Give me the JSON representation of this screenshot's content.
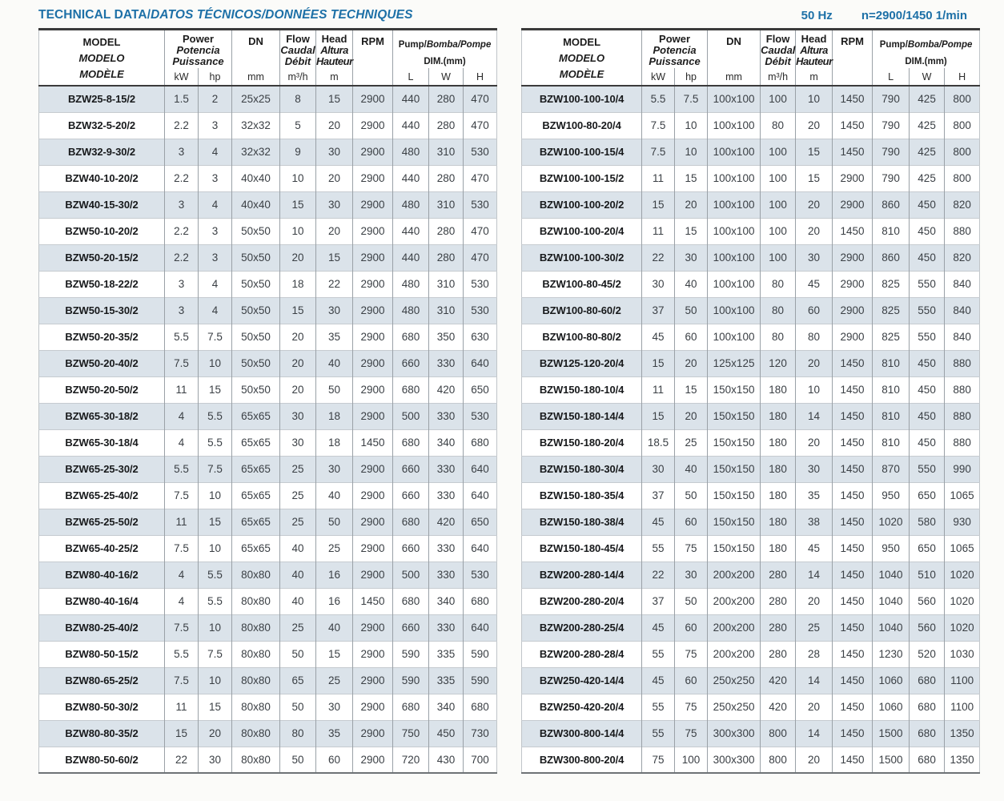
{
  "page": {
    "title_main": "TECHNICAL DATA/",
    "title_rest": "DATOS TÉCNICOS/DONNÉES TECHNIQUES",
    "frequency": "50 Hz",
    "speed": "n=2900/1450 1/min"
  },
  "header": {
    "model_lines": [
      "MODEL",
      "MODELO",
      "MODÈLE"
    ],
    "power_lines": [
      "Power",
      "Potencia",
      "Puissance"
    ],
    "dn": "DN",
    "flow_lines": [
      "Flow",
      "Caudal",
      "Débit"
    ],
    "head_lines": [
      "Head",
      "Altura",
      "Hauteur"
    ],
    "rpm": "RPM",
    "dim_pump": "Pump/",
    "dim_rest": "Bomba/Pompe",
    "dim_line2": "DIM.(mm)",
    "units": {
      "kw": "kW",
      "hp": "hp",
      "mm": "mm",
      "flow": "m³/h",
      "head": "m",
      "l": "L",
      "w": "W",
      "h": "H"
    }
  },
  "left_rows": [
    [
      "BZW25-8-15/2",
      "1.5",
      "2",
      "25x25",
      "8",
      "15",
      "2900",
      "440",
      "280",
      "470"
    ],
    [
      "BZW32-5-20/2",
      "2.2",
      "3",
      "32x32",
      "5",
      "20",
      "2900",
      "440",
      "280",
      "470"
    ],
    [
      "BZW32-9-30/2",
      "3",
      "4",
      "32x32",
      "9",
      "30",
      "2900",
      "480",
      "310",
      "530"
    ],
    [
      "BZW40-10-20/2",
      "2.2",
      "3",
      "40x40",
      "10",
      "20",
      "2900",
      "440",
      "280",
      "470"
    ],
    [
      "BZW40-15-30/2",
      "3",
      "4",
      "40x40",
      "15",
      "30",
      "2900",
      "480",
      "310",
      "530"
    ],
    [
      "BZW50-10-20/2",
      "2.2",
      "3",
      "50x50",
      "10",
      "20",
      "2900",
      "440",
      "280",
      "470"
    ],
    [
      "BZW50-20-15/2",
      "2.2",
      "3",
      "50x50",
      "20",
      "15",
      "2900",
      "440",
      "280",
      "470"
    ],
    [
      "BZW50-18-22/2",
      "3",
      "4",
      "50x50",
      "18",
      "22",
      "2900",
      "480",
      "310",
      "530"
    ],
    [
      "BZW50-15-30/2",
      "3",
      "4",
      "50x50",
      "15",
      "30",
      "2900",
      "480",
      "310",
      "530"
    ],
    [
      "BZW50-20-35/2",
      "5.5",
      "7.5",
      "50x50",
      "20",
      "35",
      "2900",
      "680",
      "350",
      "630"
    ],
    [
      "BZW50-20-40/2",
      "7.5",
      "10",
      "50x50",
      "20",
      "40",
      "2900",
      "660",
      "330",
      "640"
    ],
    [
      "BZW50-20-50/2",
      "11",
      "15",
      "50x50",
      "20",
      "50",
      "2900",
      "680",
      "420",
      "650"
    ],
    [
      "BZW65-30-18/2",
      "4",
      "5.5",
      "65x65",
      "30",
      "18",
      "2900",
      "500",
      "330",
      "530"
    ],
    [
      "BZW65-30-18/4",
      "4",
      "5.5",
      "65x65",
      "30",
      "18",
      "1450",
      "680",
      "340",
      "680"
    ],
    [
      "BZW65-25-30/2",
      "5.5",
      "7.5",
      "65x65",
      "25",
      "30",
      "2900",
      "660",
      "330",
      "640"
    ],
    [
      "BZW65-25-40/2",
      "7.5",
      "10",
      "65x65",
      "25",
      "40",
      "2900",
      "660",
      "330",
      "640"
    ],
    [
      "BZW65-25-50/2",
      "11",
      "15",
      "65x65",
      "25",
      "50",
      "2900",
      "680",
      "420",
      "650"
    ],
    [
      "BZW65-40-25/2",
      "7.5",
      "10",
      "65x65",
      "40",
      "25",
      "2900",
      "660",
      "330",
      "640"
    ],
    [
      "BZW80-40-16/2",
      "4",
      "5.5",
      "80x80",
      "40",
      "16",
      "2900",
      "500",
      "330",
      "530"
    ],
    [
      "BZW80-40-16/4",
      "4",
      "5.5",
      "80x80",
      "40",
      "16",
      "1450",
      "680",
      "340",
      "680"
    ],
    [
      "BZW80-25-40/2",
      "7.5",
      "10",
      "80x80",
      "25",
      "40",
      "2900",
      "660",
      "330",
      "640"
    ],
    [
      "BZW80-50-15/2",
      "5.5",
      "7.5",
      "80x80",
      "50",
      "15",
      "2900",
      "590",
      "335",
      "590"
    ],
    [
      "BZW80-65-25/2",
      "7.5",
      "10",
      "80x80",
      "65",
      "25",
      "2900",
      "590",
      "335",
      "590"
    ],
    [
      "BZW80-50-30/2",
      "11",
      "15",
      "80x80",
      "50",
      "30",
      "2900",
      "680",
      "340",
      "680"
    ],
    [
      "BZW80-80-35/2",
      "15",
      "20",
      "80x80",
      "80",
      "35",
      "2900",
      "750",
      "450",
      "730"
    ],
    [
      "BZW80-50-60/2",
      "22",
      "30",
      "80x80",
      "50",
      "60",
      "2900",
      "720",
      "430",
      "700"
    ]
  ],
  "right_rows": [
    [
      "BZW100-100-10/4",
      "5.5",
      "7.5",
      "100x100",
      "100",
      "10",
      "1450",
      "790",
      "425",
      "800"
    ],
    [
      "BZW100-80-20/4",
      "7.5",
      "10",
      "100x100",
      "80",
      "20",
      "1450",
      "790",
      "425",
      "800"
    ],
    [
      "BZW100-100-15/4",
      "7.5",
      "10",
      "100x100",
      "100",
      "15",
      "1450",
      "790",
      "425",
      "800"
    ],
    [
      "BZW100-100-15/2",
      "11",
      "15",
      "100x100",
      "100",
      "15",
      "2900",
      "790",
      "425",
      "800"
    ],
    [
      "BZW100-100-20/2",
      "15",
      "20",
      "100x100",
      "100",
      "20",
      "2900",
      "860",
      "450",
      "820"
    ],
    [
      "BZW100-100-20/4",
      "11",
      "15",
      "100x100",
      "100",
      "20",
      "1450",
      "810",
      "450",
      "880"
    ],
    [
      "BZW100-100-30/2",
      "22",
      "30",
      "100x100",
      "100",
      "30",
      "2900",
      "860",
      "450",
      "820"
    ],
    [
      "BZW100-80-45/2",
      "30",
      "40",
      "100x100",
      "80",
      "45",
      "2900",
      "825",
      "550",
      "840"
    ],
    [
      "BZW100-80-60/2",
      "37",
      "50",
      "100x100",
      "80",
      "60",
      "2900",
      "825",
      "550",
      "840"
    ],
    [
      "BZW100-80-80/2",
      "45",
      "60",
      "100x100",
      "80",
      "80",
      "2900",
      "825",
      "550",
      "840"
    ],
    [
      "BZW125-120-20/4",
      "15",
      "20",
      "125x125",
      "120",
      "20",
      "1450",
      "810",
      "450",
      "880"
    ],
    [
      "BZW150-180-10/4",
      "11",
      "15",
      "150x150",
      "180",
      "10",
      "1450",
      "810",
      "450",
      "880"
    ],
    [
      "BZW150-180-14/4",
      "15",
      "20",
      "150x150",
      "180",
      "14",
      "1450",
      "810",
      "450",
      "880"
    ],
    [
      "BZW150-180-20/4",
      "18.5",
      "25",
      "150x150",
      "180",
      "20",
      "1450",
      "810",
      "450",
      "880"
    ],
    [
      "BZW150-180-30/4",
      "30",
      "40",
      "150x150",
      "180",
      "30",
      "1450",
      "870",
      "550",
      "990"
    ],
    [
      "BZW150-180-35/4",
      "37",
      "50",
      "150x150",
      "180",
      "35",
      "1450",
      "950",
      "650",
      "1065"
    ],
    [
      "BZW150-180-38/4",
      "45",
      "60",
      "150x150",
      "180",
      "38",
      "1450",
      "1020",
      "580",
      "930"
    ],
    [
      "BZW150-180-45/4",
      "55",
      "75",
      "150x150",
      "180",
      "45",
      "1450",
      "950",
      "650",
      "1065"
    ],
    [
      "BZW200-280-14/4",
      "22",
      "30",
      "200x200",
      "280",
      "14",
      "1450",
      "1040",
      "510",
      "1020"
    ],
    [
      "BZW200-280-20/4",
      "37",
      "50",
      "200x200",
      "280",
      "20",
      "1450",
      "1040",
      "560",
      "1020"
    ],
    [
      "BZW200-280-25/4",
      "45",
      "60",
      "200x200",
      "280",
      "25",
      "1450",
      "1040",
      "560",
      "1020"
    ],
    [
      "BZW200-280-28/4",
      "55",
      "75",
      "200x200",
      "280",
      "28",
      "1450",
      "1230",
      "520",
      "1030"
    ],
    [
      "BZW250-420-14/4",
      "45",
      "60",
      "250x250",
      "420",
      "14",
      "1450",
      "1060",
      "680",
      "1100"
    ],
    [
      "BZW250-420-20/4",
      "55",
      "75",
      "250x250",
      "420",
      "20",
      "1450",
      "1060",
      "680",
      "1100"
    ],
    [
      "BZW300-800-14/4",
      "55",
      "75",
      "300x300",
      "800",
      "14",
      "1450",
      "1500",
      "680",
      "1350"
    ],
    [
      "BZW300-800-20/4",
      "75",
      "100",
      "300x300",
      "800",
      "20",
      "1450",
      "1500",
      "680",
      "1350"
    ]
  ]
}
